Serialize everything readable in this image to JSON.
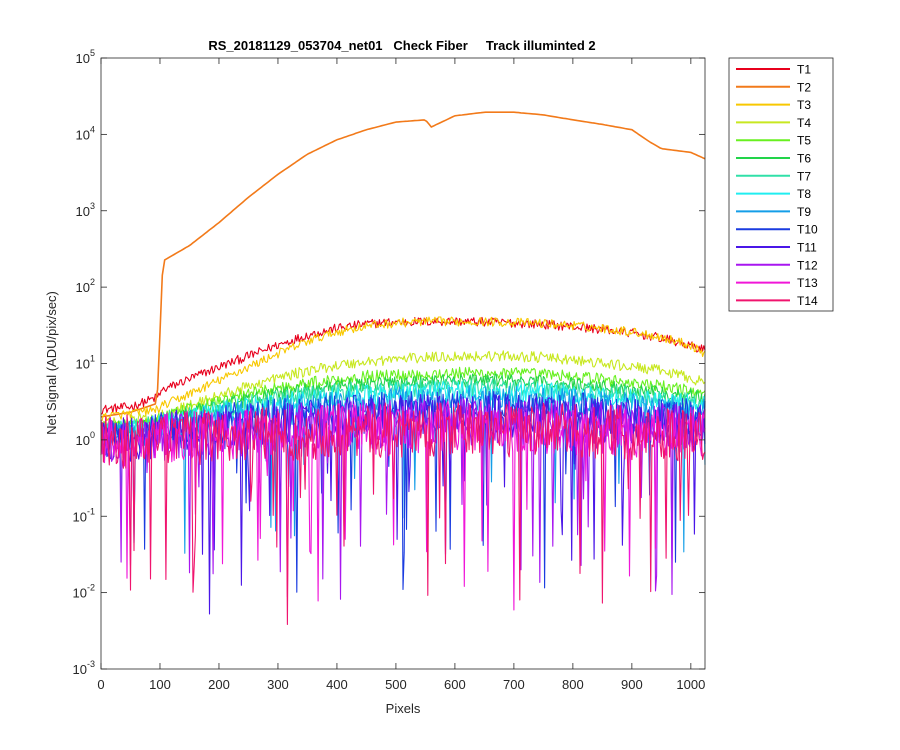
{
  "chart_data": {
    "type": "line",
    "title": "RS_20181129_053704_net01   Check Fiber     Track illuminted 2",
    "xlabel": "Pixels",
    "ylabel": "Net Signal (ADU/pix/sec)",
    "xlim": [
      0,
      1024
    ],
    "ylim": [
      0.001,
      100000
    ],
    "yscale": "log",
    "grid": false,
    "legend_position": "outside-top-right",
    "x_ticks": [
      0,
      100,
      200,
      300,
      400,
      500,
      600,
      700,
      800,
      900,
      1000
    ],
    "y_ticks": [
      {
        "value": 0.001,
        "base": "10",
        "exp": "-3"
      },
      {
        "value": 0.01,
        "base": "10",
        "exp": "-2"
      },
      {
        "value": 0.1,
        "base": "10",
        "exp": "-1"
      },
      {
        "value": 1,
        "base": "10",
        "exp": "0"
      },
      {
        "value": 10,
        "base": "10",
        "exp": "1"
      },
      {
        "value": 100,
        "base": "10",
        "exp": "2"
      },
      {
        "value": 1000,
        "base": "10",
        "exp": "3"
      },
      {
        "value": 10000,
        "base": "10",
        "exp": "4"
      },
      {
        "value": 100000,
        "base": "10",
        "exp": "5"
      }
    ],
    "x": [
      0,
      50,
      95,
      105,
      150,
      200,
      250,
      300,
      350,
      400,
      450,
      500,
      550,
      560,
      600,
      650,
      700,
      750,
      800,
      850,
      900,
      930,
      950,
      1000,
      1024
    ],
    "series": [
      {
        "name": "T1",
        "color": "#e8001c",
        "values": [
          2.5,
          2.7,
          3.6,
          4.5,
          6.3,
          9.0,
          12.5,
          17.5,
          23.5,
          29.0,
          33.0,
          35.0,
          35.5,
          35.5,
          35.5,
          35.0,
          34.0,
          32.5,
          30.5,
          28.0,
          25.0,
          23.0,
          21.5,
          17.0,
          15.0
        ],
        "noise": 0.06
      },
      {
        "name": "T2",
        "color": "#f27a1a",
        "values": [
          2.0,
          2.3,
          3.0,
          220,
          350,
          700,
          1500,
          3000,
          5500,
          8500,
          11500,
          14500,
          15500,
          12500,
          17500,
          19500,
          19500,
          18000,
          15500,
          13500,
          11500,
          8000,
          6500,
          5800,
          4800
        ],
        "noise": 0.0,
        "spike_x": 92
      },
      {
        "name": "T3",
        "color": "#f8c800",
        "values": [
          2.0,
          2.2,
          2.5,
          2.8,
          4.0,
          6.0,
          9.0,
          13.5,
          19.5,
          26.0,
          31.0,
          34.0,
          35.5,
          35.5,
          35.5,
          35.5,
          34.5,
          33.5,
          31.5,
          29.0,
          26.0,
          24.0,
          22.0,
          17.5,
          13.5
        ],
        "noise": 0.06
      },
      {
        "name": "T4",
        "color": "#c8e820",
        "values": [
          1.6,
          1.8,
          2.0,
          2.2,
          2.8,
          3.8,
          5.0,
          6.5,
          8.0,
          9.5,
          10.5,
          11.5,
          12.0,
          12.0,
          12.5,
          12.5,
          12.5,
          12.0,
          11.0,
          10.0,
          9.0,
          8.5,
          8.0,
          6.5,
          5.5
        ],
        "noise": 0.07
      },
      {
        "name": "T5",
        "color": "#68f020",
        "values": [
          1.5,
          1.6,
          1.8,
          2.0,
          2.5,
          3.2,
          4.0,
          4.8,
          5.5,
          6.2,
          6.8,
          7.0,
          7.3,
          7.3,
          7.5,
          7.5,
          7.4,
          7.2,
          6.8,
          6.2,
          5.6,
          5.2,
          5.0,
          4.4,
          4.0
        ],
        "noise": 0.08
      },
      {
        "name": "T6",
        "color": "#22d44a",
        "values": [
          1.4,
          1.5,
          1.7,
          1.9,
          2.3,
          2.8,
          3.4,
          4.0,
          4.6,
          5.0,
          5.4,
          5.7,
          5.9,
          5.9,
          6.0,
          6.0,
          5.9,
          5.7,
          5.4,
          5.0,
          4.6,
          4.4,
          4.2,
          3.8,
          3.5
        ],
        "noise": 0.09
      },
      {
        "name": "T7",
        "color": "#30e0a8",
        "values": [
          1.3,
          1.4,
          1.6,
          1.8,
          2.1,
          2.5,
          3.0,
          3.4,
          3.8,
          4.2,
          4.5,
          4.7,
          4.8,
          4.8,
          4.9,
          4.9,
          4.8,
          4.6,
          4.4,
          4.1,
          3.8,
          3.6,
          3.5,
          3.2,
          3.0
        ],
        "noise": 0.12
      },
      {
        "name": "T8",
        "color": "#20eef0",
        "values": [
          1.2,
          1.3,
          1.5,
          1.6,
          1.9,
          2.2,
          2.6,
          3.0,
          3.3,
          3.6,
          3.8,
          4.0,
          4.1,
          4.1,
          4.2,
          4.2,
          4.1,
          4.0,
          3.8,
          3.6,
          3.3,
          3.2,
          3.1,
          2.9,
          2.7
        ],
        "noise": 0.15
      },
      {
        "name": "T9",
        "color": "#149ee8",
        "values": [
          1.1,
          1.2,
          1.3,
          1.4,
          1.6,
          1.9,
          2.1,
          2.4,
          2.6,
          2.8,
          3.0,
          3.1,
          3.2,
          3.2,
          3.2,
          3.2,
          3.2,
          3.1,
          3.0,
          2.8,
          2.6,
          2.5,
          2.4,
          2.3,
          2.2
        ],
        "noise": 0.2
      },
      {
        "name": "T10",
        "color": "#1a3ce0",
        "values": [
          1.0,
          1.1,
          1.2,
          1.3,
          1.4,
          1.6,
          1.8,
          1.9,
          2.1,
          2.2,
          2.3,
          2.4,
          2.4,
          2.4,
          2.5,
          2.5,
          2.4,
          2.4,
          2.3,
          2.2,
          2.1,
          2.0,
          2.0,
          1.9,
          1.8
        ],
        "noise": 0.26
      },
      {
        "name": "T11",
        "color": "#4a16e8",
        "values": [
          1.0,
          1.05,
          1.1,
          1.2,
          1.3,
          1.4,
          1.5,
          1.6,
          1.7,
          1.8,
          1.9,
          1.9,
          2.0,
          2.0,
          2.0,
          2.0,
          2.0,
          1.9,
          1.9,
          1.8,
          1.7,
          1.7,
          1.6,
          1.6,
          1.5
        ],
        "noise": 0.3
      },
      {
        "name": "T12",
        "color": "#a816f0",
        "values": [
          0.95,
          1.0,
          1.05,
          1.1,
          1.2,
          1.3,
          1.35,
          1.4,
          1.5,
          1.55,
          1.6,
          1.6,
          1.65,
          1.65,
          1.65,
          1.65,
          1.65,
          1.6,
          1.6,
          1.55,
          1.5,
          1.45,
          1.45,
          1.4,
          1.35
        ],
        "noise": 0.32
      },
      {
        "name": "T13",
        "color": "#f016d8",
        "values": [
          0.9,
          0.95,
          1.0,
          1.05,
          1.1,
          1.15,
          1.2,
          1.25,
          1.3,
          1.35,
          1.4,
          1.4,
          1.45,
          1.45,
          1.45,
          1.45,
          1.45,
          1.4,
          1.4,
          1.35,
          1.3,
          1.3,
          1.3,
          1.25,
          1.2
        ],
        "noise": 0.34
      },
      {
        "name": "T14",
        "color": "#f0146e",
        "values": [
          0.9,
          0.95,
          1.0,
          1.0,
          1.05,
          1.1,
          1.15,
          1.2,
          1.25,
          1.3,
          1.3,
          1.35,
          1.35,
          1.35,
          1.35,
          1.35,
          1.35,
          1.35,
          1.3,
          1.3,
          1.25,
          1.25,
          1.25,
          1.2,
          1.15
        ],
        "noise": 0.36
      }
    ]
  }
}
